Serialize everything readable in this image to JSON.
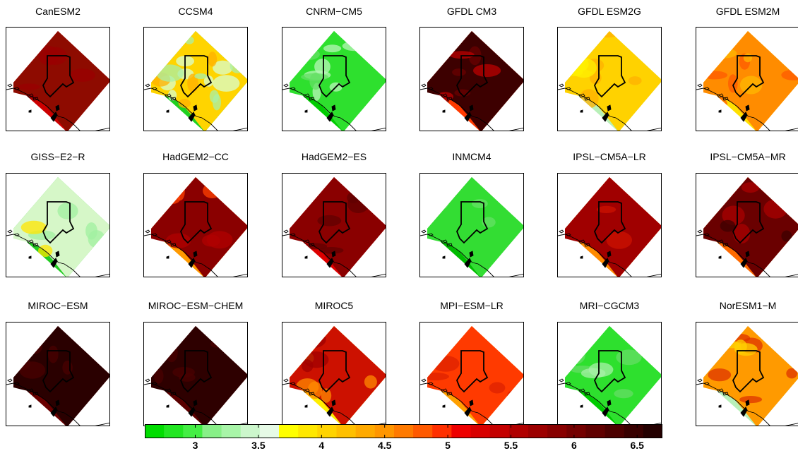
{
  "panels": [
    {
      "name": "CanESM2",
      "inland": "#8e0b00",
      "coast": "#cc0000",
      "spots": [
        [
          "#9a0000",
          5
        ]
      ]
    },
    {
      "name": "CCSM4",
      "inland": "#ffd400",
      "coast": "#20d020",
      "spots": [
        [
          "#d8ffd0",
          8
        ],
        [
          "#ffb000",
          5
        ],
        [
          "#a8f0a8",
          6
        ]
      ]
    },
    {
      "name": "CNRM−CM5",
      "inland": "#2ee02e",
      "coast": "#00cc00",
      "spots": [
        [
          "#b8f5b8",
          6
        ],
        [
          "#66e066",
          4
        ]
      ]
    },
    {
      "name": "GFDL CM3",
      "inland": "#3d0000",
      "coast": "#ff3a00",
      "spots": [
        [
          "#6a0000",
          5
        ],
        [
          "#bb0000",
          3
        ]
      ]
    },
    {
      "name": "GFDL ESM2G",
      "inland": "#ffd200",
      "coast": "#b8f0b8",
      "spots": [
        [
          "#ffb000",
          6
        ],
        [
          "#fff000",
          4
        ]
      ]
    },
    {
      "name": "GFDL ESM2M",
      "inland": "#ff8c00",
      "coast": "#ffe000",
      "spots": [
        [
          "#ff5a00",
          5
        ],
        [
          "#ffb800",
          4
        ]
      ]
    },
    {
      "name": "GISS−E2−R",
      "inland": "#d6f7c8",
      "coast": "#22cc22",
      "spots": [
        [
          "#a0f0a0",
          6
        ],
        [
          "#ffe600",
          3
        ]
      ]
    },
    {
      "name": "HadGEM2−CC",
      "inland": "#8a0000",
      "coast": "#ff9a00",
      "spots": [
        [
          "#b00000",
          5
        ],
        [
          "#ff4000",
          3
        ]
      ]
    },
    {
      "name": "HadGEM2−ES",
      "inland": "#8a0000",
      "coast": "#dd0000",
      "spots": [
        [
          "#600000",
          5
        ]
      ]
    },
    {
      "name": "INMCM4",
      "inland": "#33dd33",
      "coast": "#00bb00",
      "spots": [
        [
          "#66e066",
          5
        ]
      ]
    },
    {
      "name": "IPSL−CM5A−LR",
      "inland": "#a00000",
      "coast": "#ff8a00",
      "spots": [
        [
          "#cc1100",
          5
        ]
      ]
    },
    {
      "name": "IPSL−CM5A−MR",
      "inland": "#6a0000",
      "coast": "#ff6a00",
      "spots": [
        [
          "#aa0000",
          5
        ],
        [
          "#3d0000",
          3
        ]
      ]
    },
    {
      "name": "MIROC−ESM",
      "inland": "#2a0000",
      "coast": "#6a0000",
      "spots": [
        [
          "#4a0000",
          5
        ]
      ]
    },
    {
      "name": "MIROC−ESM−CHEM",
      "inland": "#2e0000",
      "coast": "#5a0000",
      "spots": [
        [
          "#4a0000",
          5
        ]
      ]
    },
    {
      "name": "MIROC5",
      "inland": "#cc1100",
      "coast": "#ffee00",
      "spots": [
        [
          "#ff8a00",
          5
        ],
        [
          "#a00000",
          3
        ]
      ]
    },
    {
      "name": "MPI−ESM−LR",
      "inland": "#ff3a00",
      "coast": "#ffa000",
      "spots": [
        [
          "#dd2200",
          5
        ]
      ]
    },
    {
      "name": "MRI−CGCM3",
      "inland": "#2ee02e",
      "coast": "#00cc00",
      "spots": [
        [
          "#66dd66",
          5
        ],
        [
          "#a8f0a8",
          3
        ]
      ]
    },
    {
      "name": "NorESM1−M",
      "inland": "#ff9a00",
      "coast": "#b8f0b8",
      "spots": [
        [
          "#dd3300",
          5
        ],
        [
          "#ffd000",
          4
        ]
      ]
    }
  ],
  "colorbar": {
    "colors": [
      "#00dd00",
      "#22e622",
      "#44ee44",
      "#88f088",
      "#a8f5a8",
      "#ccf7cc",
      "#e6fae6",
      "#ffff00",
      "#ffe800",
      "#ffd400",
      "#ffc000",
      "#ffaa00",
      "#ff9600",
      "#ff7a00",
      "#ff5a00",
      "#ff3000",
      "#ee0000",
      "#d80000",
      "#c40000",
      "#b00000",
      "#9c0000",
      "#880000",
      "#740000",
      "#600000",
      "#4c0000",
      "#380000",
      "#240000"
    ],
    "min": 2.6,
    "max": 6.7,
    "ticks": [
      {
        "value": 3,
        "label": "3"
      },
      {
        "value": 3.5,
        "label": "3.5"
      },
      {
        "value": 4,
        "label": "4"
      },
      {
        "value": 4.5,
        "label": "4.5"
      },
      {
        "value": 5,
        "label": "5"
      },
      {
        "value": 5.5,
        "label": "5.5"
      },
      {
        "value": 6,
        "label": "6"
      },
      {
        "value": 6.5,
        "label": "6.5"
      }
    ]
  }
}
